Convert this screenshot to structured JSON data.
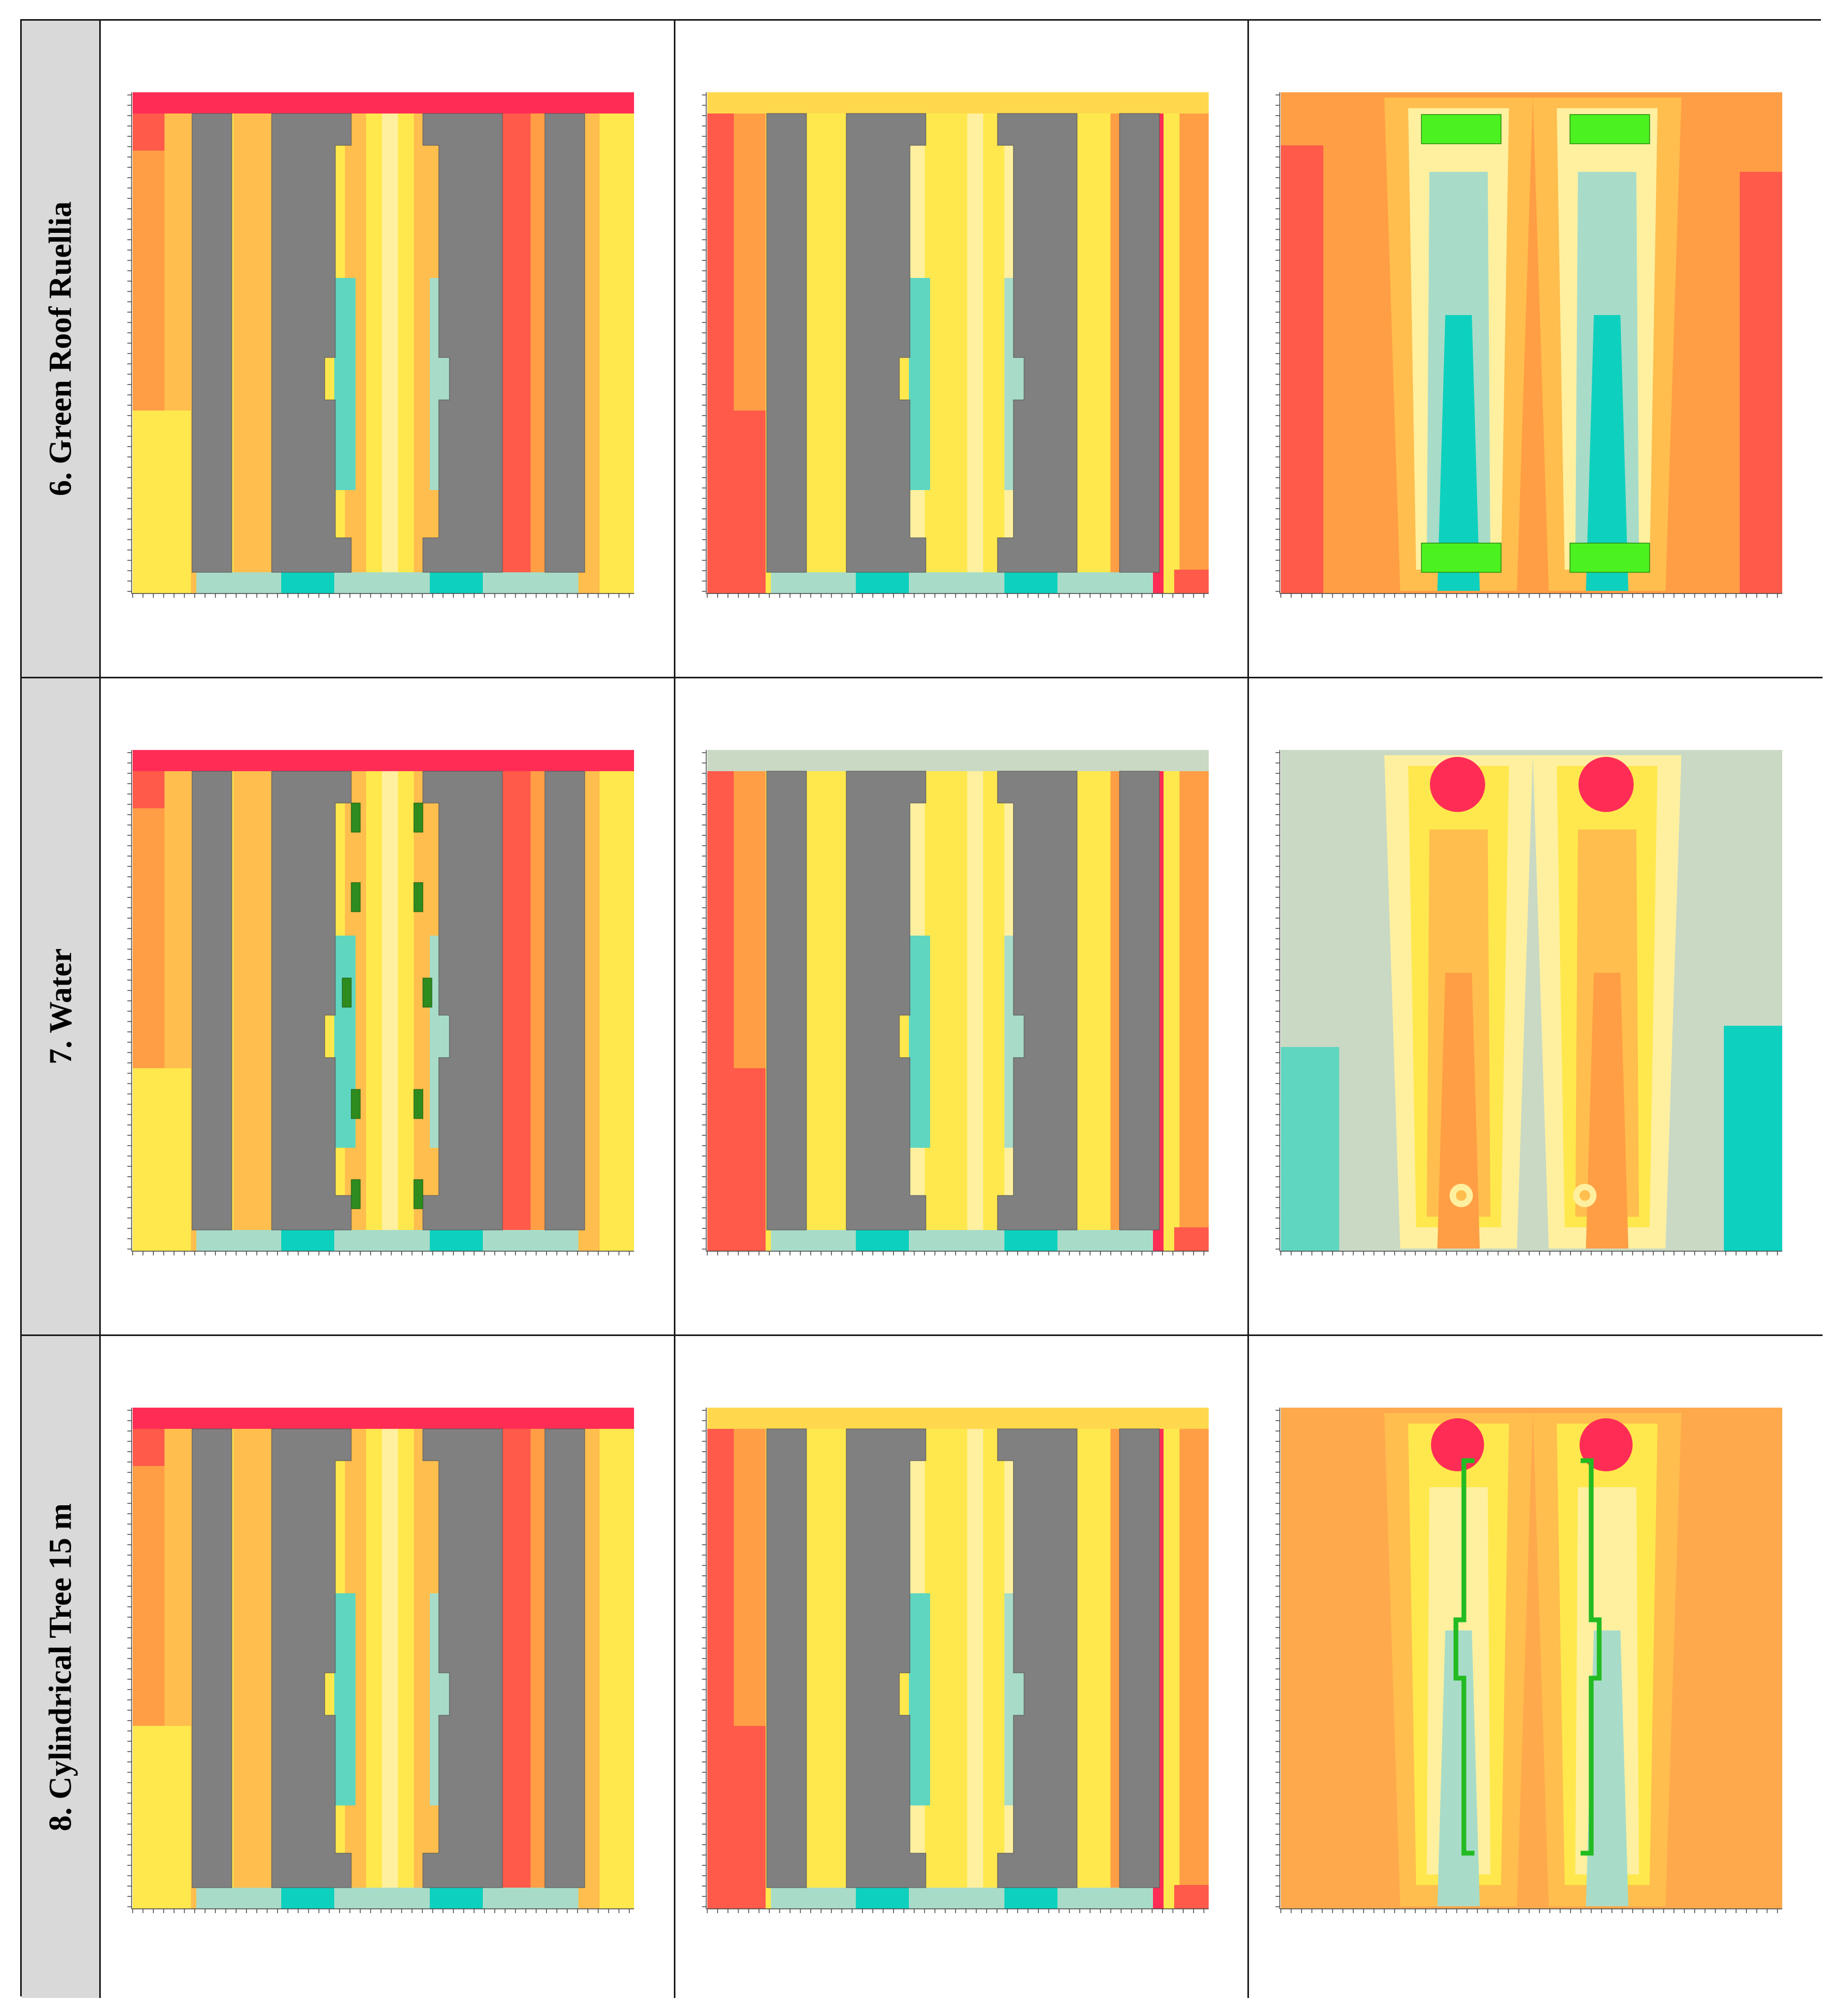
{
  "rows": [
    {
      "label": "6. Green Roof Ruellia",
      "panels": [
        {
          "layout": "buildings",
          "feature": "none",
          "top_band": "#ff2d55",
          "hot": "#ff4d4d"
        },
        {
          "layout": "buildings",
          "feature": "none",
          "top_band": "#ffd84d",
          "hot": "#ff2d55"
        },
        {
          "layout": "twin-plumes",
          "feature": "green-roof-pads",
          "plume": "cool",
          "base": "#ff9e45"
        }
      ]
    },
    {
      "label": "7. Water",
      "panels": [
        {
          "layout": "buildings",
          "feature": "water-edges",
          "top_band": "#ff2d55",
          "hot": "#ff4d4d"
        },
        {
          "layout": "buildings",
          "feature": "none",
          "top_band": "#c9d9c4",
          "hot": "#ff2d55"
        },
        {
          "layout": "twin-plumes",
          "feature": "hot-spots",
          "plume": "warm",
          "base": "#c9d9c4"
        }
      ]
    },
    {
      "label": "8. Cylindrical Tree 15 m",
      "panels": [
        {
          "layout": "buildings",
          "feature": "none",
          "top_band": "#ff2d55",
          "hot": "#ff4d4d"
        },
        {
          "layout": "buildings",
          "feature": "none",
          "top_band": "#ffd84d",
          "hot": "#ff2d55"
        },
        {
          "layout": "twin-plumes",
          "feature": "tree-outlines",
          "plume": "mixed",
          "base": "#ffa94d"
        }
      ]
    }
  ],
  "palette": {
    "red": "#ff2d55",
    "red_orange": "#ff5a4a",
    "orange": "#ff9e45",
    "light_orange": "#ffbe4d",
    "yellow": "#ffe84d",
    "pale_yellow": "#fff0a0",
    "grey_green": "#c9d9c4",
    "mint": "#a8dcc8",
    "teal": "#5fd6c0",
    "cyan": "#0dd1be",
    "building": "#808080",
    "green_pad": "#4cf21f",
    "dark_green": "#2e8b1e",
    "tree_outline": "#22bb22"
  }
}
